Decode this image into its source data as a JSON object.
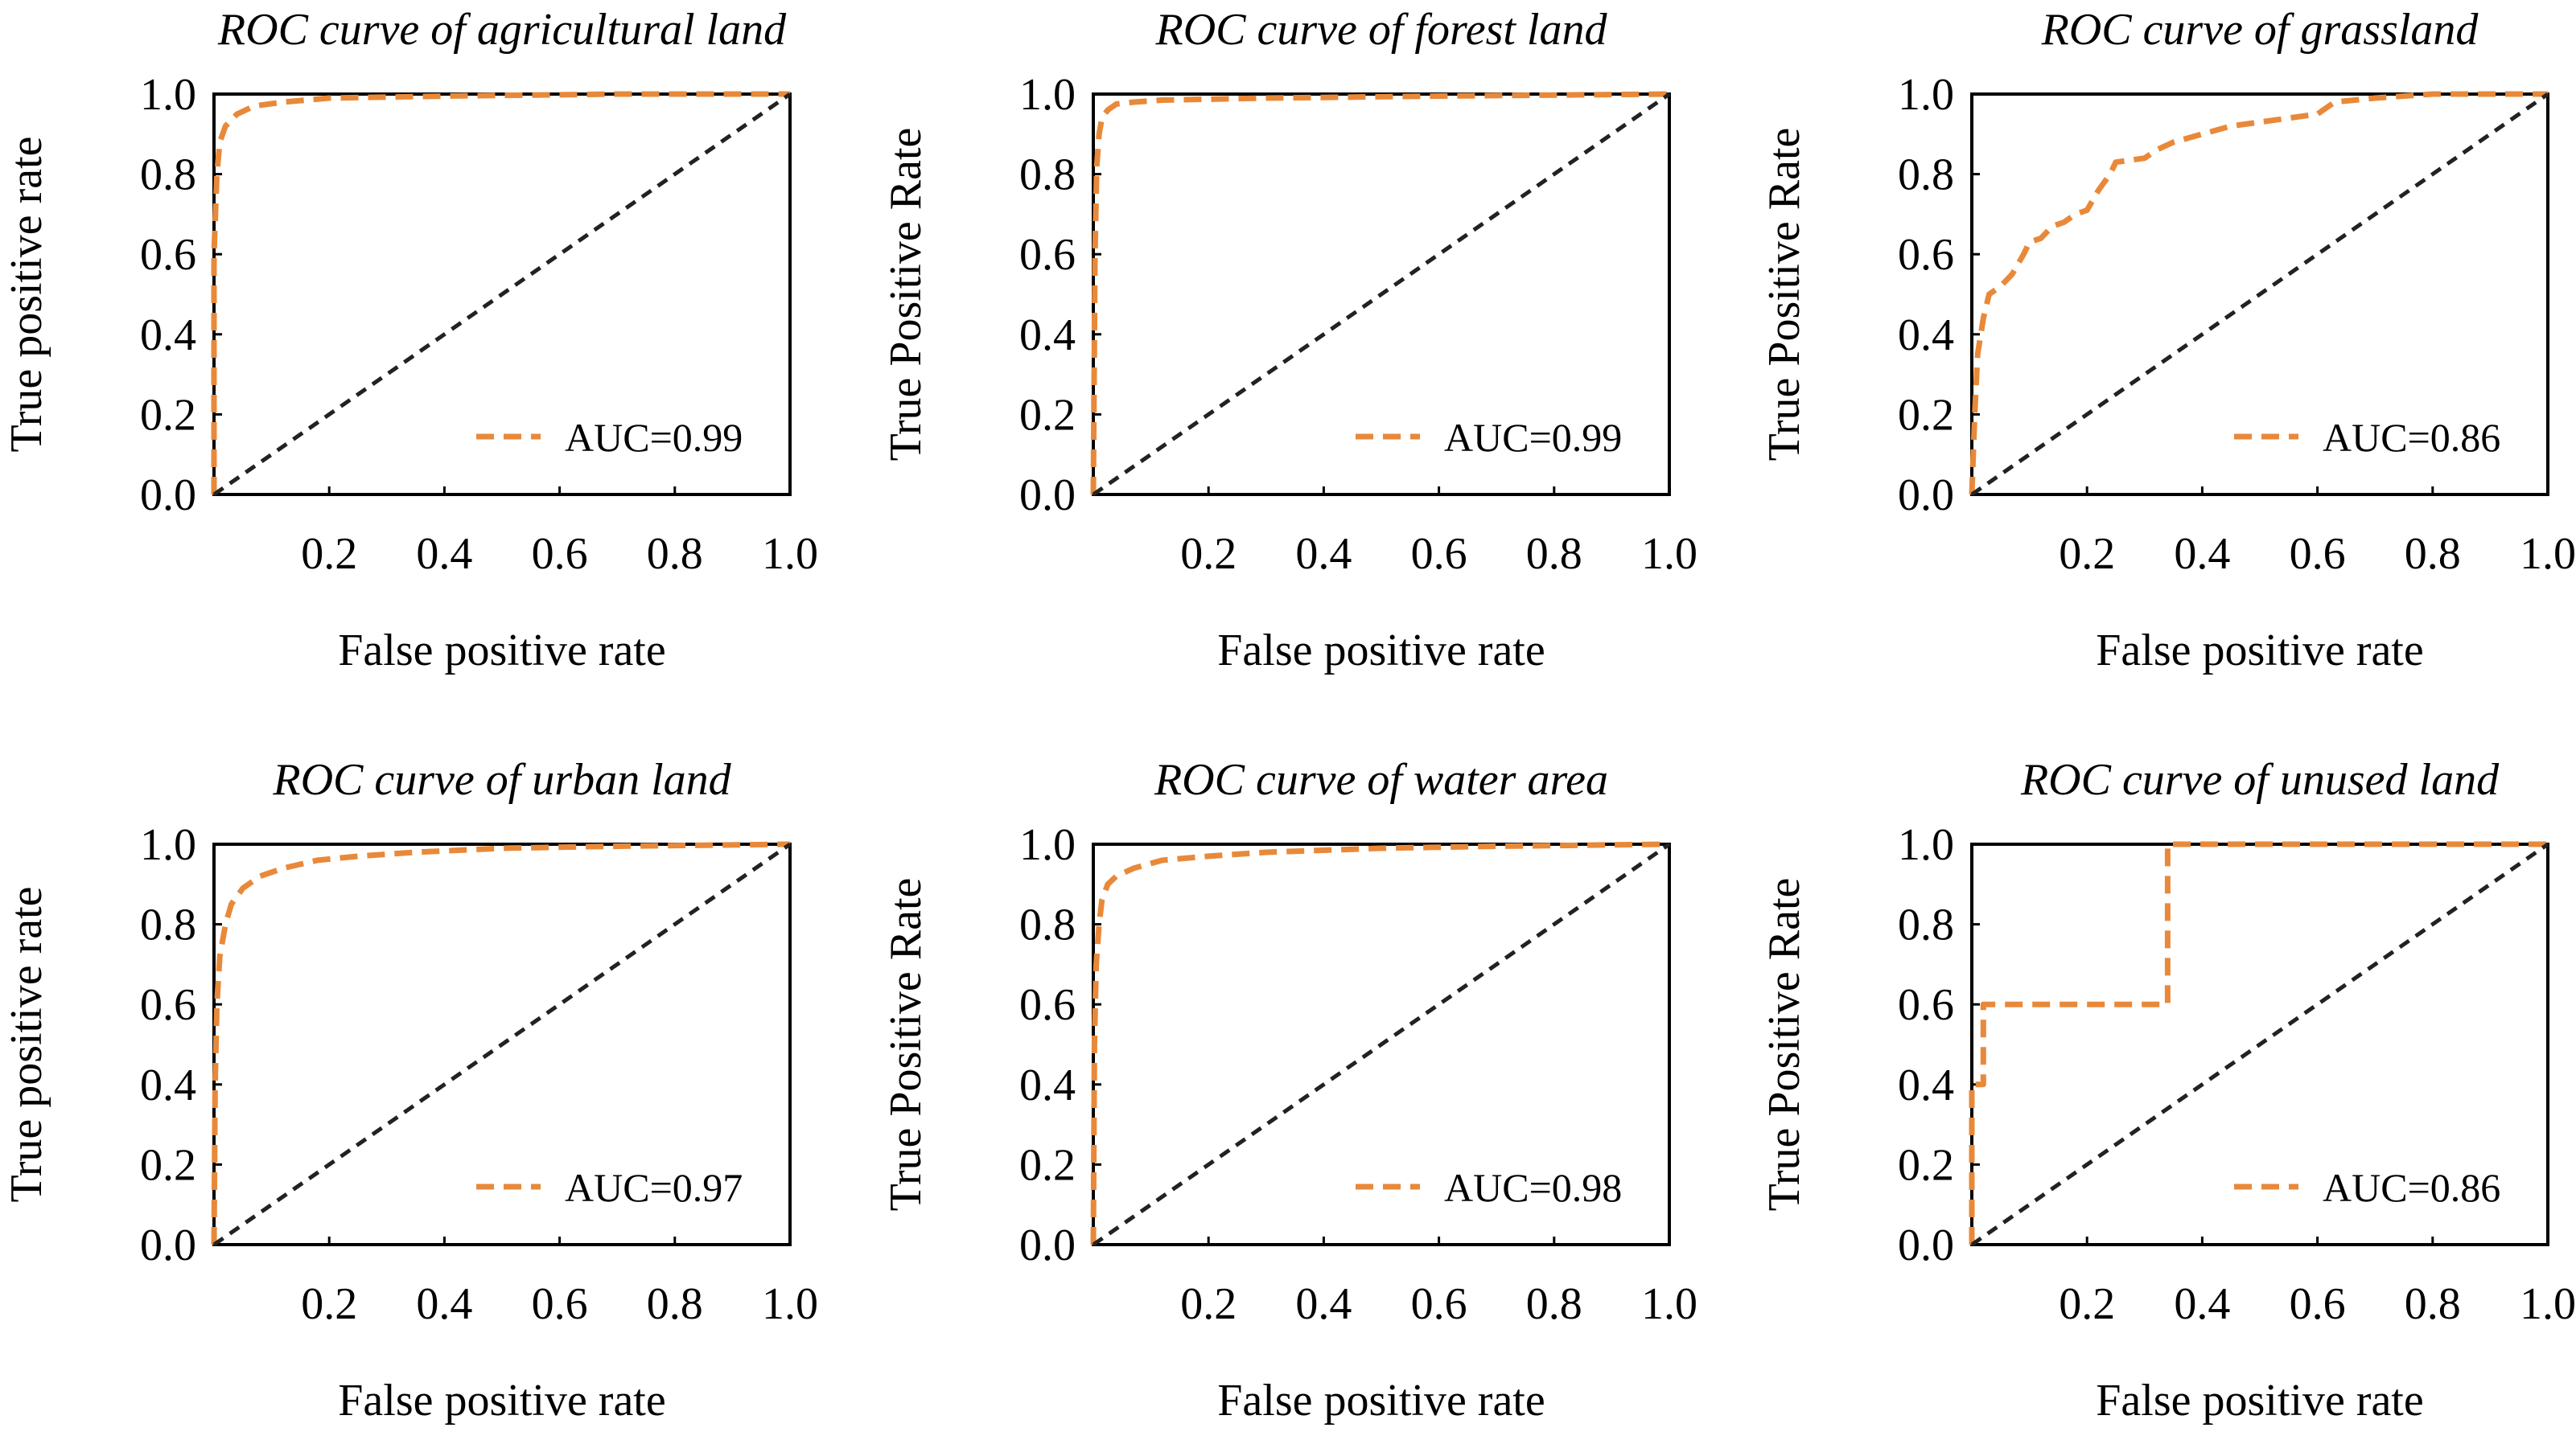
{
  "colors": {
    "roc": "#e8893a",
    "chance": "#222222",
    "frame": "#000000"
  },
  "chart_data": [
    {
      "type": "line",
      "title": "ROC curve of agricultural land",
      "xlabel": "False positive rate",
      "ylabel": "True positive rate",
      "xlim": [
        0,
        1
      ],
      "ylim": [
        0,
        1
      ],
      "xticks": [
        "0.2",
        "0.4",
        "0.6",
        "0.8",
        "1.0"
      ],
      "yticks": [
        "0.0",
        "0.2",
        "0.4",
        "0.6",
        "0.8",
        "1.0"
      ],
      "legend_position": "lower-right",
      "legend_label": "AUC=0.99",
      "series": [
        {
          "name": "AUC=0.99",
          "x": [
            0,
            0.0,
            0.005,
            0.01,
            0.02,
            0.04,
            0.07,
            0.12,
            0.2,
            0.4,
            0.7,
            1.0
          ],
          "y": [
            0,
            0.6,
            0.8,
            0.88,
            0.92,
            0.95,
            0.97,
            0.98,
            0.99,
            0.995,
            1.0,
            1.0
          ]
        },
        {
          "name": "",
          "x": [
            0,
            1
          ],
          "y": [
            0,
            1
          ],
          "role": "chance"
        }
      ]
    },
    {
      "type": "line",
      "title": "ROC curve of forest land",
      "xlabel": "False positive rate",
      "ylabel": "True Positive Rate",
      "xlim": [
        0,
        1
      ],
      "ylim": [
        0,
        1
      ],
      "xticks": [
        "0.2",
        "0.4",
        "0.6",
        "0.8",
        "1.0"
      ],
      "yticks": [
        "0.0",
        "0.2",
        "0.4",
        "0.6",
        "0.8",
        "1.0"
      ],
      "legend_position": "lower-right",
      "legend_label": "AUC=0.99",
      "series": [
        {
          "name": "AUC=0.99",
          "x": [
            0,
            0.003,
            0.006,
            0.01,
            0.015,
            0.025,
            0.04,
            0.07,
            0.12,
            0.3,
            0.6,
            1.0
          ],
          "y": [
            0,
            0.6,
            0.82,
            0.9,
            0.94,
            0.96,
            0.975,
            0.98,
            0.985,
            0.99,
            0.995,
            1.0
          ]
        },
        {
          "name": "",
          "x": [
            0,
            1
          ],
          "y": [
            0,
            1
          ],
          "role": "chance"
        }
      ]
    },
    {
      "type": "line",
      "title": "ROC curve of grassland",
      "xlabel": "False positive rate",
      "ylabel": "True Positive Rate",
      "xlim": [
        0,
        1
      ],
      "ylim": [
        0,
        1
      ],
      "xticks": [
        "0.2",
        "0.4",
        "0.6",
        "0.8",
        "1.0"
      ],
      "yticks": [
        "0.0",
        "0.2",
        "0.4",
        "0.6",
        "0.8",
        "1.0"
      ],
      "legend_position": "lower-right",
      "legend_label": "AUC=0.86",
      "series": [
        {
          "name": "AUC=0.86",
          "x": [
            0,
            0.005,
            0.01,
            0.02,
            0.03,
            0.05,
            0.07,
            0.09,
            0.1,
            0.12,
            0.14,
            0.16,
            0.18,
            0.2,
            0.22,
            0.24,
            0.25,
            0.3,
            0.32,
            0.35,
            0.4,
            0.45,
            0.5,
            0.55,
            0.6,
            0.62,
            0.63,
            0.7,
            0.8,
            1.0
          ],
          "y": [
            0,
            0.2,
            0.35,
            0.44,
            0.5,
            0.52,
            0.55,
            0.6,
            0.63,
            0.64,
            0.67,
            0.68,
            0.7,
            0.71,
            0.76,
            0.8,
            0.83,
            0.84,
            0.86,
            0.88,
            0.9,
            0.92,
            0.93,
            0.94,
            0.95,
            0.97,
            0.98,
            0.99,
            1.0,
            1.0
          ]
        },
        {
          "name": "",
          "x": [
            0,
            1
          ],
          "y": [
            0,
            1
          ],
          "role": "chance"
        }
      ]
    },
    {
      "type": "line",
      "title": "ROC curve of urban land",
      "xlabel": "False positive rate",
      "ylabel": "True positive rate",
      "xlim": [
        0,
        1
      ],
      "ylim": [
        0,
        1
      ],
      "xticks": [
        "0.2",
        "0.4",
        "0.6",
        "0.8",
        "1.0"
      ],
      "yticks": [
        "0.0",
        "0.2",
        "0.4",
        "0.6",
        "0.8",
        "1.0"
      ],
      "legend_position": "lower-right",
      "legend_label": "AUC=0.97",
      "series": [
        {
          "name": "AUC=0.97",
          "x": [
            0,
            0.002,
            0.005,
            0.01,
            0.02,
            0.03,
            0.05,
            0.08,
            0.12,
            0.18,
            0.25,
            0.35,
            0.5,
            0.7,
            1.0
          ],
          "y": [
            0,
            0.4,
            0.6,
            0.72,
            0.8,
            0.85,
            0.89,
            0.92,
            0.94,
            0.96,
            0.97,
            0.98,
            0.99,
            0.995,
            1.0
          ]
        },
        {
          "name": "",
          "x": [
            0,
            1
          ],
          "y": [
            0,
            1
          ],
          "role": "chance"
        }
      ]
    },
    {
      "type": "line",
      "title": "ROC curve of water area",
      "xlabel": "False positive rate",
      "ylabel": "True Positive Rate",
      "xlim": [
        0,
        1
      ],
      "ylim": [
        0,
        1
      ],
      "xticks": [
        "0.2",
        "0.4",
        "0.6",
        "0.8",
        "1.0"
      ],
      "yticks": [
        "0.0",
        "0.2",
        "0.4",
        "0.6",
        "0.8",
        "1.0"
      ],
      "legend_position": "lower-right",
      "legend_label": "AUC=0.98",
      "series": [
        {
          "name": "AUC=0.98",
          "x": [
            0,
            0.002,
            0.005,
            0.01,
            0.015,
            0.025,
            0.04,
            0.07,
            0.12,
            0.2,
            0.3,
            0.5,
            0.7,
            1.0
          ],
          "y": [
            0,
            0.5,
            0.7,
            0.8,
            0.86,
            0.9,
            0.92,
            0.94,
            0.96,
            0.97,
            0.98,
            0.99,
            0.995,
            1.0
          ]
        },
        {
          "name": "",
          "x": [
            0,
            1
          ],
          "y": [
            0,
            1
          ],
          "role": "chance"
        }
      ]
    },
    {
      "type": "line",
      "title": "ROC curve of unused land",
      "xlabel": "False positive rate",
      "ylabel": "True Positive Rate",
      "xlim": [
        0,
        1
      ],
      "ylim": [
        0,
        1
      ],
      "xticks": [
        "0.2",
        "0.4",
        "0.6",
        "0.8",
        "1.0"
      ],
      "yticks": [
        "0.0",
        "0.2",
        "0.4",
        "0.6",
        "0.8",
        "1.0"
      ],
      "legend_position": "lower-right",
      "legend_label": "AUC=0.86",
      "series": [
        {
          "name": "AUC=0.86",
          "x": [
            0,
            0,
            0.01,
            0.01,
            0.02,
            0.02,
            0.33,
            0.33,
            0.34,
            0.34,
            1.0
          ],
          "y": [
            0,
            0.4,
            0.4,
            0.4,
            0.4,
            0.6,
            0.6,
            0.6,
            0.6,
            1.0,
            1.0
          ]
        },
        {
          "name": "",
          "x": [
            0,
            1
          ],
          "y": [
            0,
            1
          ],
          "role": "chance"
        }
      ]
    }
  ]
}
